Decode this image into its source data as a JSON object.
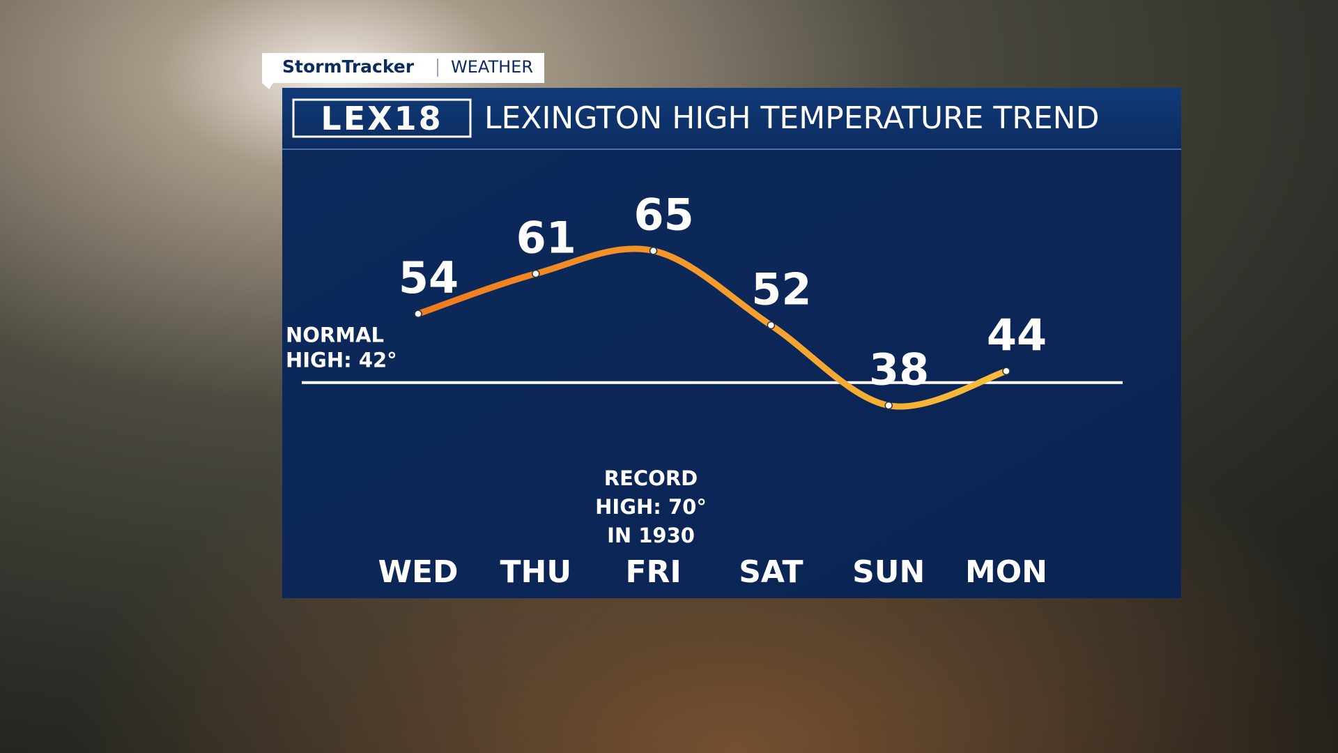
{
  "branding": {
    "network": "StormTracker",
    "section": "WEATHER",
    "logo": "LEX18"
  },
  "chart_data": {
    "type": "line",
    "title": "LEXINGTON HIGH TEMPERATURE TREND",
    "categories": [
      "WED",
      "THU",
      "FRI",
      "SAT",
      "SUN",
      "MON"
    ],
    "values": [
      54,
      61,
      65,
      52,
      38,
      44
    ],
    "ylim": [
      13,
      82
    ],
    "colors": [
      "#f07a1e",
      "#f7bd3a"
    ],
    "reference_line": {
      "value": 42,
      "label": [
        "NORMAL",
        "HIGH: 42°"
      ]
    },
    "annotation": [
      "RECORD",
      "HIGH: 70°",
      "IN 1930"
    ]
  }
}
